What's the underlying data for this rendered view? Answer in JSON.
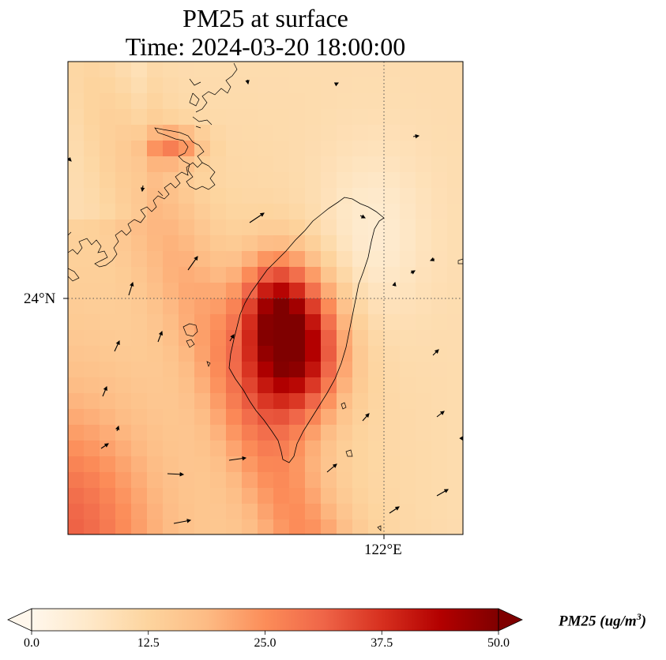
{
  "title": {
    "line1": "PM25 at surface",
    "line2": "Time: 2024-03-20 18:00:00"
  },
  "map": {
    "lat_tick_label": "24°N",
    "lon_tick_label": "122°E",
    "field_name": "PM25",
    "projection_extent": {
      "lon_min": 117.2,
      "lon_max": 123.2,
      "lat_min": 20.4,
      "lat_max": 27.6
    },
    "gridlines": {
      "lat": 24,
      "lon": 122,
      "style": "dotted"
    },
    "hotspot": {
      "lon": 120.7,
      "lat": 23.6,
      "value_estimate": 50
    },
    "secondary_hotspot": {
      "lon": 119.5,
      "lat": 25.8,
      "value_estimate": 24
    }
  },
  "colorbar": {
    "label_main": "PM25 (ug/m",
    "label_exp": "3",
    "label_close": ")",
    "ticks": [
      "0.0",
      "12.5",
      "25.0",
      "37.5",
      "50.0"
    ],
    "min": 0,
    "max": 50,
    "extend": "both",
    "colormap": "OrRd",
    "colors": [
      "#fff7ec",
      "#fee8c8",
      "#fdd49e",
      "#fdbb84",
      "#fc8d59",
      "#ef6548",
      "#d7301f",
      "#b30000",
      "#7f0000"
    ]
  }
}
